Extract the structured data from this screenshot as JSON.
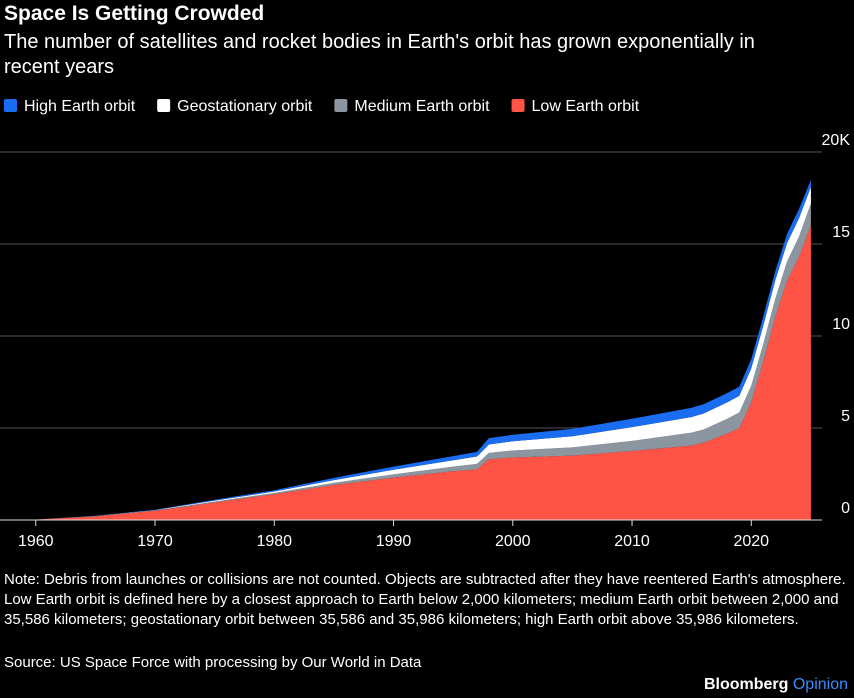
{
  "chart_data": {
    "type": "stacked_area",
    "title": "Space Is Getting Crowded",
    "subtitle": "The number of satellites and rocket bodies in Earth's orbit has grown exponentially in recent years",
    "x": [
      1957,
      1960,
      1965,
      1970,
      1975,
      1980,
      1985,
      1990,
      1995,
      1997,
      1998,
      2000,
      2005,
      2010,
      2015,
      2016,
      2018,
      2019,
      2020,
      2021,
      2022,
      2023,
      2024,
      2025
    ],
    "series": [
      {
        "name": "High Earth orbit",
        "color": "#1a6df0",
        "values": [
          0,
          0,
          0.01,
          0.02,
          0.05,
          0.07,
          0.12,
          0.17,
          0.22,
          0.25,
          0.35,
          0.35,
          0.4,
          0.45,
          0.5,
          0.5,
          0.5,
          0.5,
          0.5,
          0.5,
          0.5,
          0.5,
          0.5,
          0.4
        ]
      },
      {
        "name": "Geostationary orbit",
        "color": "#ffffff",
        "values": [
          0,
          0,
          0.01,
          0.02,
          0.05,
          0.08,
          0.15,
          0.25,
          0.35,
          0.4,
          0.45,
          0.5,
          0.6,
          0.75,
          0.85,
          0.87,
          0.9,
          0.9,
          0.95,
          1.0,
          1.0,
          1.0,
          1.0,
          0.9
        ]
      },
      {
        "name": "Medium Earth orbit",
        "color": "#8c96a0",
        "values": [
          0,
          0,
          0.01,
          0.02,
          0.05,
          0.07,
          0.12,
          0.18,
          0.25,
          0.3,
          0.35,
          0.38,
          0.45,
          0.55,
          0.7,
          0.72,
          0.8,
          0.85,
          0.9,
          0.95,
          1.0,
          1.05,
          1.1,
          1.2
        ]
      },
      {
        "name": "Low Earth orbit",
        "color": "#ff5346",
        "values": [
          0,
          0.03,
          0.2,
          0.5,
          0.95,
          1.4,
          1.9,
          2.3,
          2.65,
          2.75,
          3.3,
          3.4,
          3.5,
          3.75,
          4.05,
          4.2,
          4.7,
          5.0,
          6.4,
          8.6,
          11.0,
          13.0,
          14.3,
          16.0
        ]
      }
    ],
    "xlim": [
      1957,
      2026.6
    ],
    "xticks": [
      1960,
      1970,
      1980,
      1990,
      2000,
      2010,
      2020
    ],
    "ylim": [
      0,
      20
    ],
    "yticks": [
      0,
      5,
      10,
      15,
      {
        "value": 20,
        "label": "20K"
      }
    ],
    "grid": true,
    "note": "Note: Debris from launches or collisions are not counted. Objects are subtracted after they have reentered Earth's atmosphere. Low Earth orbit is defined here by a closest approach to Earth below 2,000 kilometers; medium Earth orbit between 2,000 and 35,586 kilometers; geostationary orbit between 35,586 and 35,986 kilometers; high Earth orbit above 35,986 kilometers.",
    "source": "Source: US Space Force with processing by Our World in Data",
    "brand": "Bloomberg",
    "brand_section": "Opinion"
  }
}
